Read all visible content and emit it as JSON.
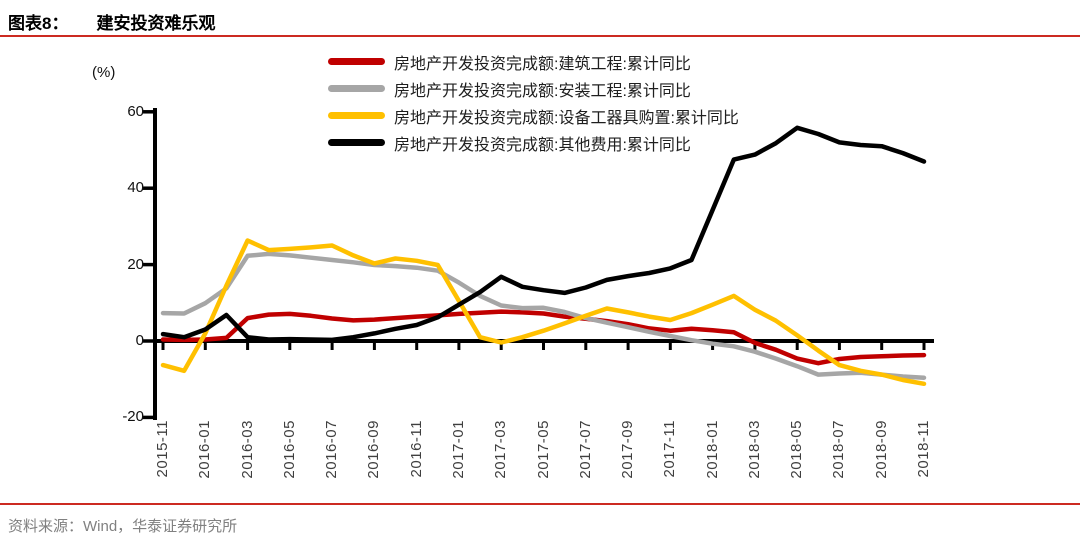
{
  "header": {
    "figure_label": "图表8：",
    "title": "建安投资难乐观"
  },
  "footer": {
    "source": "资料来源：Wind，华泰证券研究所"
  },
  "style": {
    "accent_rule": "#cc2a21",
    "footer_text": "#808080",
    "axis_color": "#000000"
  },
  "chart_data": {
    "type": "line",
    "title": "建安投资难乐观",
    "y_unit": "(%)",
    "ylim": [
      -20,
      60
    ],
    "y_ticks": [
      60,
      40,
      20,
      0,
      -20
    ],
    "grid": false,
    "legend_position": "top-center",
    "x": [
      "2015-11",
      "2015-12",
      "2016-01",
      "2016-02",
      "2016-03",
      "2016-04",
      "2016-05",
      "2016-06",
      "2016-07",
      "2016-08",
      "2016-09",
      "2016-10",
      "2016-11",
      "2016-12",
      "2017-01",
      "2017-02",
      "2017-03",
      "2017-04",
      "2017-05",
      "2017-06",
      "2017-07",
      "2017-08",
      "2017-09",
      "2017-10",
      "2017-11",
      "2017-12",
      "2018-01",
      "2018-02",
      "2018-03",
      "2018-04",
      "2018-05",
      "2018-06",
      "2018-07",
      "2018-08",
      "2018-09",
      "2018-10",
      "2018-11"
    ],
    "x_tick_labels": [
      "2015-11",
      "2016-01",
      "2016-03",
      "2016-05",
      "2016-07",
      "2016-09",
      "2016-11",
      "2017-01",
      "2017-03",
      "2017-05",
      "2017-07",
      "2017-09",
      "2017-11",
      "2018-01",
      "2018-03",
      "2018-05",
      "2018-07",
      "2018-09",
      "2018-11"
    ],
    "series": [
      {
        "name": "房地产开发投资完成额:建筑工程:累计同比",
        "color": "#c00000",
        "values": [
          0.4,
          0.3,
          0.4,
          0.8,
          6.0,
          6.9,
          7.1,
          6.6,
          5.9,
          5.4,
          5.6,
          6.0,
          6.4,
          6.7,
          7.1,
          7.4,
          7.7,
          7.5,
          7.2,
          6.4,
          5.8,
          5.2,
          4.4,
          3.3,
          2.7,
          3.2,
          2.8,
          2.3,
          -0.5,
          -2.3,
          -4.6,
          -5.8,
          -4.7,
          -4.2,
          -4.0,
          -3.8,
          -3.7
        ]
      },
      {
        "name": "房地产开发投资完成额:安装工程:累计同比",
        "color": "#a6a6a6",
        "values": [
          7.3,
          7.2,
          9.9,
          13.8,
          22.3,
          22.8,
          22.4,
          21.8,
          21.2,
          20.6,
          19.9,
          19.6,
          19.2,
          18.4,
          15.3,
          11.8,
          9.3,
          8.6,
          8.7,
          7.6,
          6.0,
          4.8,
          3.6,
          2.4,
          1.3,
          0.2,
          -0.7,
          -1.4,
          -2.8,
          -4.6,
          -6.6,
          -8.8,
          -8.5,
          -8.3,
          -8.8,
          -9.3,
          -9.6
        ]
      },
      {
        "name": "房地产开发投资完成额:设备工器具购置:累计同比",
        "color": "#ffc000",
        "values": [
          -6.3,
          -7.8,
          2.0,
          14.5,
          26.3,
          23.8,
          24.1,
          24.5,
          25.0,
          22.4,
          20.3,
          21.6,
          21.0,
          19.9,
          10.5,
          1.0,
          -0.4,
          1.0,
          2.7,
          4.6,
          6.6,
          8.5,
          7.5,
          6.4,
          5.5,
          7.3,
          9.5,
          11.8,
          8.2,
          5.3,
          1.5,
          -2.5,
          -6.3,
          -7.8,
          -8.8,
          -10.2,
          -11.2
        ]
      },
      {
        "name": "房地产开发投资完成额:其他费用:累计同比",
        "color": "#000000",
        "values": [
          1.8,
          1.0,
          3.0,
          6.8,
          1.0,
          0.4,
          0.5,
          0.4,
          0.3,
          1.0,
          2.0,
          3.2,
          4.2,
          6.2,
          9.5,
          12.8,
          16.8,
          14.2,
          13.3,
          12.6,
          14.0,
          16.0,
          17.0,
          17.8,
          19.0,
          21.2,
          34.3,
          47.5,
          48.8,
          51.8,
          55.8,
          54.2,
          52.0,
          51.3,
          51.0,
          49.2,
          47.0
        ]
      }
    ]
  }
}
